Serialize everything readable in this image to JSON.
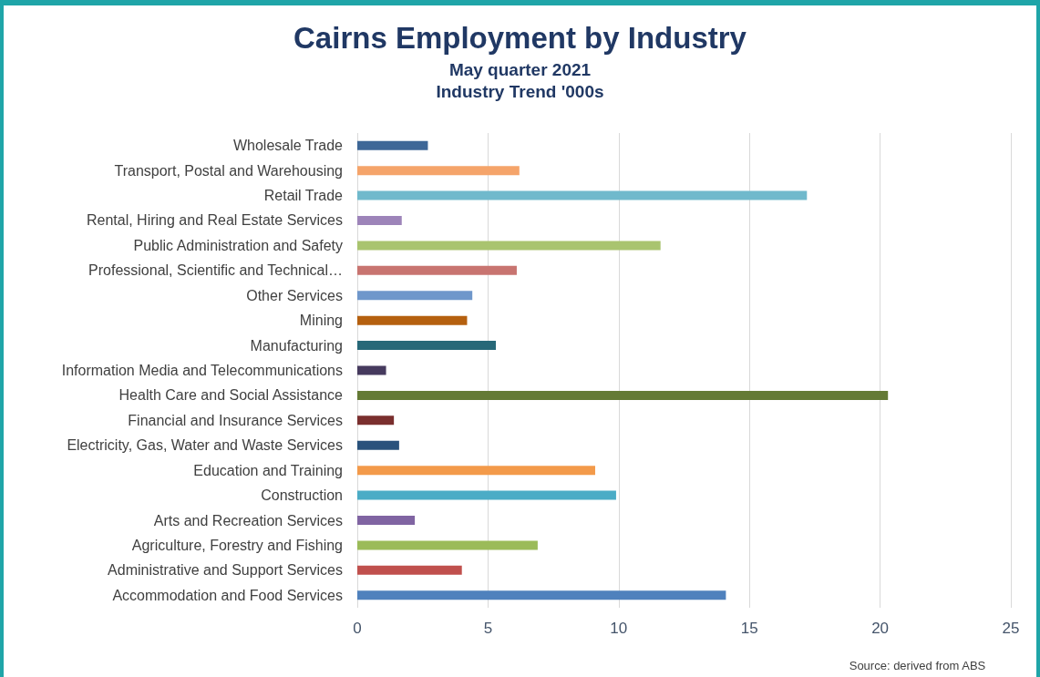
{
  "chart_data": {
    "type": "bar",
    "orientation": "horizontal",
    "title": "Cairns Employment by Industry",
    "subtitle": "May quarter 2021\nIndustry Trend '000s",
    "categories": [
      "Wholesale Trade",
      "Transport, Postal and Warehousing",
      "Retail Trade",
      "Rental, Hiring and Real Estate Services",
      "Public Administration and Safety",
      "Professional, Scientific and Technical…",
      "Other Services",
      "Mining",
      "Manufacturing",
      "Information Media and Telecommunications",
      "Health Care and Social Assistance",
      "Financial and Insurance Services",
      "Electricity, Gas, Water and Waste Services",
      "Education and Training",
      "Construction",
      "Arts and Recreation Services",
      "Agriculture, Forestry and Fishing",
      "Administrative and Support Services",
      "Accommodation and Food Services"
    ],
    "values": [
      2.7,
      6.2,
      17.2,
      1.7,
      11.6,
      6.1,
      4.4,
      4.2,
      5.3,
      1.1,
      20.3,
      1.4,
      1.6,
      9.1,
      9.9,
      2.2,
      6.9,
      4.0,
      14.1
    ],
    "colors": [
      "#3e6797",
      "#f5a46a",
      "#70b9cc",
      "#9d84b9",
      "#a9c46f",
      "#c87470",
      "#6f97cb",
      "#b5600f",
      "#276878",
      "#463a5e",
      "#647a35",
      "#7a2f2e",
      "#2a527c",
      "#f39a4a",
      "#4bacc6",
      "#8064a2",
      "#9bbb59",
      "#c0504d",
      "#4f81bd"
    ],
    "xlim": [
      0,
      25
    ],
    "xticks": [
      0,
      5,
      10,
      15,
      20,
      25
    ],
    "grid": "x",
    "annotations": [
      "Source: derived from ABS"
    ]
  }
}
